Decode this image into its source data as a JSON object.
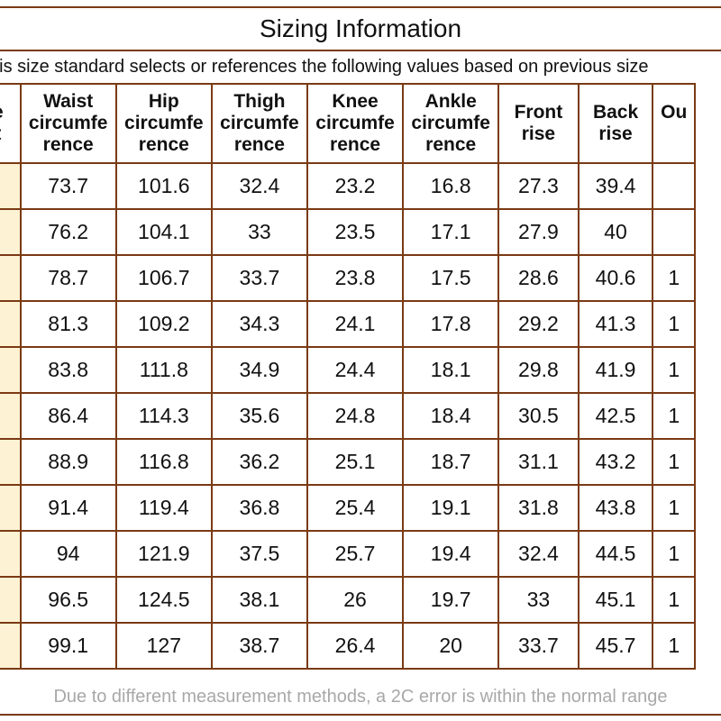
{
  "title": "Sizing Information",
  "subtitle": "his size standard selects or references the following values based on previous size",
  "columns": [
    {
      "line1": "e",
      "line2": "t",
      "line3": ""
    },
    {
      "line1": "Waist",
      "line2": "circumfe",
      "line3": "rence"
    },
    {
      "line1": "Hip",
      "line2": "circumfe",
      "line3": "rence"
    },
    {
      "line1": "Thigh",
      "line2": "circumfe",
      "line3": "rence"
    },
    {
      "line1": "Knee",
      "line2": "circumfe",
      "line3": "rence"
    },
    {
      "line1": "Ankle",
      "line2": "circumfe",
      "line3": "rence"
    },
    {
      "line1": "Front",
      "line2": "rise",
      "line3": ""
    },
    {
      "line1": "Back",
      "line2": "rise",
      "line3": ""
    },
    {
      "line1": "Ou",
      "line2": "",
      "line3": ""
    }
  ],
  "rows": [
    [
      "",
      "73.7",
      "101.6",
      "32.4",
      "23.2",
      "16.8",
      "27.3",
      "39.4",
      ""
    ],
    [
      "",
      "76.2",
      "104.1",
      "33",
      "23.5",
      "17.1",
      "27.9",
      "40",
      ""
    ],
    [
      "",
      "78.7",
      "106.7",
      "33.7",
      "23.8",
      "17.5",
      "28.6",
      "40.6",
      "1"
    ],
    [
      "",
      "81.3",
      "109.2",
      "34.3",
      "24.1",
      "17.8",
      "29.2",
      "41.3",
      "1"
    ],
    [
      "",
      "83.8",
      "111.8",
      "34.9",
      "24.4",
      "18.1",
      "29.8",
      "41.9",
      "1"
    ],
    [
      "",
      "86.4",
      "114.3",
      "35.6",
      "24.8",
      "18.4",
      "30.5",
      "42.5",
      "1"
    ],
    [
      "",
      "88.9",
      "116.8",
      "36.2",
      "25.1",
      "18.7",
      "31.1",
      "43.2",
      "1"
    ],
    [
      "",
      "91.4",
      "119.4",
      "36.8",
      "25.4",
      "19.1",
      "31.8",
      "43.8",
      "1"
    ],
    [
      "",
      "94",
      "121.9",
      "37.5",
      "25.7",
      "19.4",
      "32.4",
      "44.5",
      "1"
    ],
    [
      "",
      "96.5",
      "124.5",
      "38.1",
      "26",
      "19.7",
      "33",
      "45.1",
      "1"
    ],
    [
      "",
      "99.1",
      "127",
      "38.7",
      "26.4",
      "20",
      "33.7",
      "45.7",
      "1"
    ]
  ],
  "footer": "Due to different measurement methods, a 2C error is within the normal range",
  "colors": {
    "border": "#7a3a14",
    "size_cell": "#fef2d4",
    "footer_text": "#a8a8a8"
  }
}
